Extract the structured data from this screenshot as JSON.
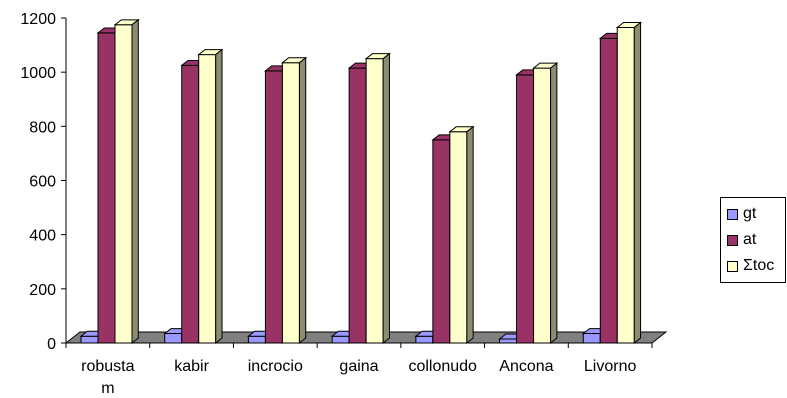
{
  "chart_data": {
    "type": "bar",
    "style": "3d-clustered-column",
    "categories": [
      [
        "robusta",
        "m"
      ],
      [
        "kabir"
      ],
      [
        "incrocio"
      ],
      [
        "gaina"
      ],
      [
        "collonudo"
      ],
      [
        "Ancona"
      ],
      [
        "Livorno"
      ]
    ],
    "series": [
      {
        "name": "gt",
        "color": "#9999FF",
        "values": [
          25,
          35,
          25,
          25,
          25,
          15,
          35
        ]
      },
      {
        "name": "at",
        "color": "#993366",
        "values": [
          1145,
          1025,
          1005,
          1015,
          750,
          990,
          1125
        ]
      },
      {
        "name": "Σtoc",
        "color": "#FFFFCC",
        "values": [
          1175,
          1065,
          1035,
          1050,
          780,
          1015,
          1165
        ]
      }
    ],
    "ylim": [
      0,
      1200
    ],
    "yticks": [
      "0",
      "200",
      "400",
      "600",
      "800",
      "1000",
      "1200"
    ],
    "grid": false,
    "legend": "right",
    "title": "",
    "xlabel": "",
    "ylabel": ""
  }
}
